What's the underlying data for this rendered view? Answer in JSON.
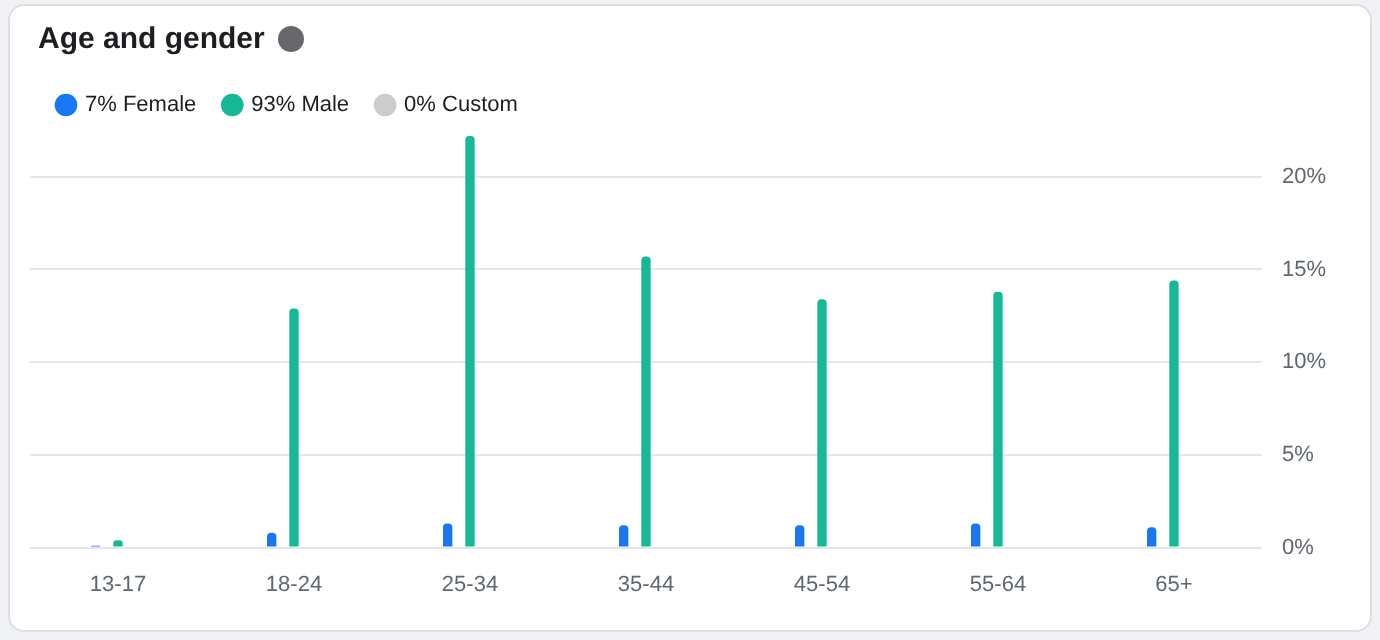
{
  "chart_data": {
    "type": "bar",
    "title": "Age and gender",
    "categories": [
      "13-17",
      "18-24",
      "25-34",
      "35-44",
      "45-54",
      "55-64",
      "65+"
    ],
    "series": [
      {
        "name": "7% Female",
        "color": "#1877f2",
        "values": [
          0.1,
          0.8,
          1.3,
          1.2,
          1.2,
          1.3,
          1.1
        ]
      },
      {
        "name": "93% Male",
        "color": "#17b897",
        "values": [
          0.4,
          12.9,
          22.2,
          15.7,
          13.4,
          13.8,
          14.4
        ]
      },
      {
        "name": "0% Custom",
        "color": "#cccccc",
        "values": [
          0,
          0,
          0,
          0,
          0,
          0,
          0
        ]
      }
    ],
    "yticks": [
      {
        "value": 0,
        "label": "0%"
      },
      {
        "value": 5,
        "label": "5%"
      },
      {
        "value": 10,
        "label": "10%"
      },
      {
        "value": 15,
        "label": "15%"
      },
      {
        "value": 20,
        "label": "20%"
      }
    ],
    "ylim": [
      0,
      22.2
    ],
    "grid": "y",
    "legend": "top left"
  }
}
